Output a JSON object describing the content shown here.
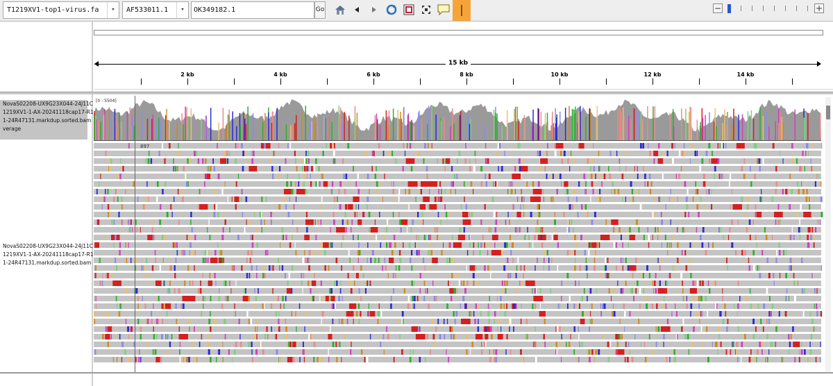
{
  "toolbar": {
    "genome": "T1219XV1-top1-virus.fa",
    "chromosome": "AF533011.1",
    "locus": "OK349182.1",
    "go_label": "Go",
    "icons": [
      "home-icon",
      "back-icon",
      "forward-icon",
      "refresh-icon",
      "roi-icon",
      "resize-icon",
      "popup-text-icon",
      "ruler-icon"
    ],
    "zoom_minus": "−",
    "zoom_plus": "+"
  },
  "ruler": {
    "span_label": "15 kb",
    "ticks": [
      {
        "label": "2 kb",
        "kb": 2
      },
      {
        "label": "4 kb",
        "kb": 4
      },
      {
        "label": "6 kb",
        "kb": 6
      },
      {
        "label": "8 kb",
        "kb": 8
      },
      {
        "label": "10 kb",
        "kb": 10
      },
      {
        "label": "12 kb",
        "kb": 12
      },
      {
        "label": "14 kb",
        "kb": 14
      }
    ]
  },
  "tracks": {
    "coverage": {
      "name_lines": [
        "NovaS02208-UX9G23X044-24J11C",
        "1219XV1-1-AX-20241118cap17-R1",
        "1-24R47131.markdup.sorted.bam",
        "verage"
      ],
      "scale": "[0 - 5504]"
    },
    "alignment": {
      "name_lines": [
        "NovaS02208-UX9G23X044-24J11C",
        "1219XV1-1-AX-20241118cap17-R1",
        "1-24R47131.markdup.sorted.bam"
      ],
      "read_label": "897"
    }
  },
  "colors": {
    "read": "#c4c4c4",
    "mismatch_A": "#2bb02b",
    "mismatch_C": "#2a2ad8",
    "mismatch_G": "#d18a1c",
    "mismatch_T": "#d42020",
    "coverage": "#9a9a9a",
    "ruler_active": "#f6a43a"
  }
}
